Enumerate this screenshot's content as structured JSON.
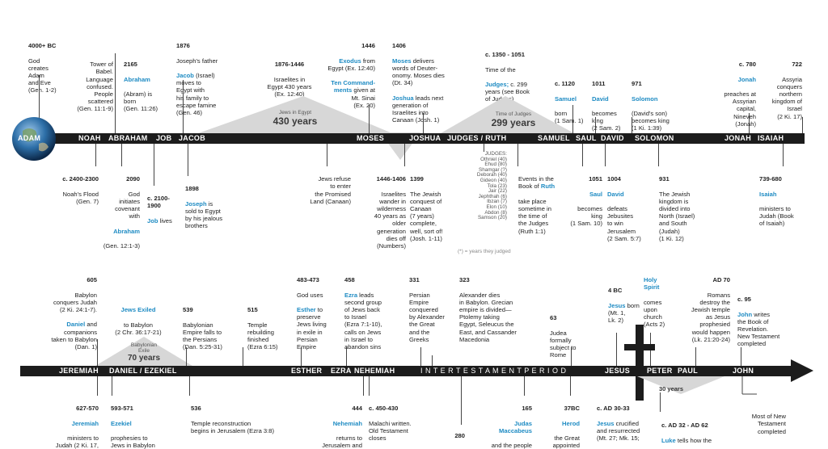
{
  "top": {
    "n1": {
      "date": "4000+ BC",
      "text": "God\ncreates\nAdam\nand Eve\n(Gen. 1-2)"
    },
    "n2": {
      "text": "Tower of\nBabel.\nLanguage\nconfused.\nPeople\nscattered\n(Gen. 11:1-9)"
    },
    "n3": {
      "date": "2165",
      "name": "Abraham",
      "text": "(Abram) is\nborn\n(Gen. 11:26)"
    },
    "n4": {
      "date": "1876",
      "text_a": "Joseph's father",
      "name": "Jacob",
      "text_b": "(Israel)\nmoves to\nEgypt with\nhis family to\nescape famine\n(Gen. 46)"
    },
    "n5": {
      "date": "1876-1446",
      "text": "Israelites in\nEgypt 430 years\n(Ex. 12:40)"
    },
    "n6": {
      "date": "1446",
      "name1": "Exodus",
      "text_a": "from\nEgypt (Ex. 12:40)",
      "name2": "Ten Command-\nments",
      "text_b": "given at\nMt. Sinai\n(Ex. 20)"
    },
    "n7": {
      "date": "1406",
      "name1": "Moses",
      "text_a": "delivers\nwords of Deuter-\nonomy. Moses dies\n(Dt. 34)",
      "name2": "Joshua",
      "text_b": "leads next\ngeneration of\nIsraelites into\nCanaan (Josh. 1)"
    },
    "n8": {
      "date": "c. 1350 - 1051",
      "text_a": "Time of the",
      "name": "Judges;",
      "text_b": "c. 299\nyears (see Book\nof Judges)"
    },
    "n9": {
      "date": "c. 1120",
      "name": "Samuel",
      "text": "born\n(1 Sam. 1)"
    },
    "n10": {
      "date": "1011",
      "name": "David",
      "text": "becomes\nking\n(2 Sam. 2)"
    },
    "n11": {
      "date": "971",
      "name": "Solomon",
      "text": "(David's son)\nbecomes king\n(1 Ki. 1:39)"
    },
    "n12": {
      "date": "c. 780",
      "name": "Jonah",
      "text": "preaches at\nAssyrian\ncapital,\nNineveh\n(Jonah)"
    },
    "n13": {
      "date": "722",
      "text": "Assyria\nconquers\nnorthern\nkingdom of\nIsrael\n(2 Ki. 17)"
    }
  },
  "spans": {
    "egypt": {
      "small": "Jews in Egypt",
      "big": "430 years"
    },
    "judges": {
      "small": "Time of Judges",
      "big": "299 years"
    },
    "exile": {
      "small": "Babylonian\nExile",
      "big": "70 years"
    },
    "thirty": {
      "big": "30 years"
    }
  },
  "bar1": {
    "adam": "ADAM",
    "noah": "NOAH",
    "abraham": "ABRAHAM",
    "job": "JOB",
    "jacob": "JACOB",
    "moses": "MOSES",
    "joshua": "JOSHUA",
    "judges": "JUDGES / RUTH",
    "samuel": "SAMUEL",
    "saul": "SAUL",
    "david": "DAVID",
    "solomon": "SOLOMON",
    "jonah": "JONAH",
    "isaiah": "ISAIAH"
  },
  "mid": {
    "m1": {
      "date": "c. 2400-2300",
      "text": "Noah's Flood\n(Gen. 7)"
    },
    "m2": {
      "date": "2090",
      "text": "God\ninitiates\ncovenant\nwith",
      "name": "Abraham",
      "text_b": "(Gen. 12:1-3)"
    },
    "m3": {
      "date": "c. 2100-\n1900",
      "name": "Job",
      "text": "lives"
    },
    "m4": {
      "date": "1898",
      "name": "Joseph",
      "text": "is\nsold to Egypt\nby his jealous\nbrothers"
    },
    "m5": {
      "text": "Jews refuse\nto enter\nthe Promised\nLand (Canaan)"
    },
    "m6": {
      "date": "1446-1406",
      "text": "Israelites\nwander in\nwilderness\n40 years as\nolder\ngeneration\ndies off\n(Numbers)"
    },
    "m7": {
      "date": "1399",
      "text": "The Jewish\nconquest of\nCanaan\n(7 years)\ncomplete,\nwell, sort of!\n(Josh. 1-11)"
    },
    "judges_list": "JUDGES:\nOthniel (40)\nEhud (80)\nShamgar (?)\nDeborah (40)\nGideon (40)\nTola (23)\nJair (22)\nJephthah (6)\nIbzan (7)\nElon (10)\nAbdon (8)\nSamson (20)",
    "judges_note": "(*) = years they judged",
    "m8": {
      "text_a": "Events in the\nBook of",
      "name": "Ruth",
      "text_b": "take place\nsometime in\nthe time of\nthe Judges\n(Ruth 1:1)"
    },
    "m9": {
      "date": "1051",
      "name": "Saul",
      "text": "becomes\nking\n(1 Sam. 10)"
    },
    "m10": {
      "date": "1004",
      "name": "David",
      "text": "defeats\nJebusites\nto win\nJerusalem\n(2 Sam. 5:7)"
    },
    "m11": {
      "date": "931",
      "text": "The Jewish\nkingdom is\ndivided into\nNorth (Israel)\nand South\n(Judah)\n(1 Ki. 12)"
    },
    "m12": {
      "date": "739-680",
      "name": "Isaiah",
      "text": "ministers to\nJudah (Book\nof Isaiah)"
    }
  },
  "row2": {
    "p1": {
      "date": "605",
      "text_a": "Babylon\nconquers Judah\n(2 Ki. 24:1-7).",
      "name": "Daniel",
      "text_b": "and\ncompanions\ntaken to Babylon\n(Dan. 1)"
    },
    "p2": {
      "name": "Jews Exiled",
      "text": "to Babylon\n(2 Chr. 36:17-21)"
    },
    "p3": {
      "date": "539",
      "text": "Babylonian\nEmpire falls to\nthe Persians\n(Dan. 5:25-31)"
    },
    "p4": {
      "date": "515",
      "text": "Temple\nrebuilding\nfinished\n(Ezra 6:15)"
    },
    "p5": {
      "date": "483-473",
      "text_a": "God uses",
      "name": "Esther",
      "text_b": "to\npreserve\nJews living\nin exile in\nPersian\nEmpire"
    },
    "p6": {
      "date": "458",
      "name": "Ezra",
      "text": "leads\nsecond group\nof Jews back\nto Israel\n(Ezra 7:1-10),\ncalls on Jews\nin Israel to\nabandon sins"
    },
    "p7": {
      "date": "331",
      "text": "Persian\nEmpire\nconquered\nby Alexander\nthe Great\nand the\nGreeks"
    },
    "p8": {
      "date": "323",
      "text": "Alexander dies\nin Babylon. Grecian\nempire is divided—\nPtolemy taking\nEgypt, Seleucus the\nEast, and Cassander\nMacedonia"
    },
    "p9": {
      "date": "63",
      "text": "Judea\nformally\nsubject to\nRome"
    },
    "p10": {
      "date": "4 BC",
      "name": "Jesus",
      "text": "born\n(Mt. 1,\nLk. 2)"
    },
    "p11": {
      "name": "Holy\nSpirit",
      "text": "comes\nupon\nchurch\n(Acts 2)"
    },
    "p12": {
      "date": "AD 70",
      "text": "Romans\ndestroy the\nJewish temple\nas Jesus\nprophesied\nwould happen\n(Lk. 21:20-24)"
    },
    "p13": {
      "date": "c. 95",
      "name": "John",
      "text": "writes\nthe Book of\nRevelation.\nNew Testament\ncompleted"
    }
  },
  "bar2": {
    "jeremiah": "JEREMIAH",
    "daniel": "DANIEL / EZEKIEL",
    "esther": "ESTHER",
    "ezra": "EZRA",
    "nehemiah": "NEHEMIAH",
    "inter": "I N T E R T E S T A M E N T   P E R I O D",
    "jesus": "JESUS",
    "peter": "PETER",
    "paul": "PAUL",
    "john": "JOHN"
  },
  "bottom": {
    "q1": {
      "date": "627-570",
      "name": "Jeremiah",
      "text": "ministers to\nJudah (2 Ki. 17,"
    },
    "q2": {
      "date": "593-571",
      "name": "Ezekiel",
      "text": "prophesies to\nJews in Babylon"
    },
    "q3": {
      "date": "536",
      "text": "Temple reconstruction\nbegins in Jerusalem (Ezra 3:8)"
    },
    "q4": {
      "date": "444",
      "name": "Nehemiah",
      "text": "returns to\nJerusalem and"
    },
    "q5": {
      "date": "c. 450-430",
      "text": "Malachi written.\nOld Testament\ncloses"
    },
    "q6": {
      "date": "280"
    },
    "q7": {
      "date": "165",
      "name": "Judas\nMaccabeus",
      "text": "and the people"
    },
    "q8": {
      "date": "37BC",
      "name": "Herod",
      "text": "the Great\nappointed"
    },
    "q9": {
      "date": "c. AD 30-33",
      "name": "Jesus",
      "text": "crucified\nand resurrected\n(Mt. 27; Mk. 15;"
    },
    "q10": {
      "date": "c. AD 32 - AD 62",
      "name": "Luke",
      "text": "tells how the"
    },
    "q11": {
      "text": "Most of New\nTestament\ncompleted"
    }
  },
  "colors": {
    "accent": "#1e8bc3",
    "bar": "#1c1c1c",
    "triangle": "#d7d7d7"
  }
}
